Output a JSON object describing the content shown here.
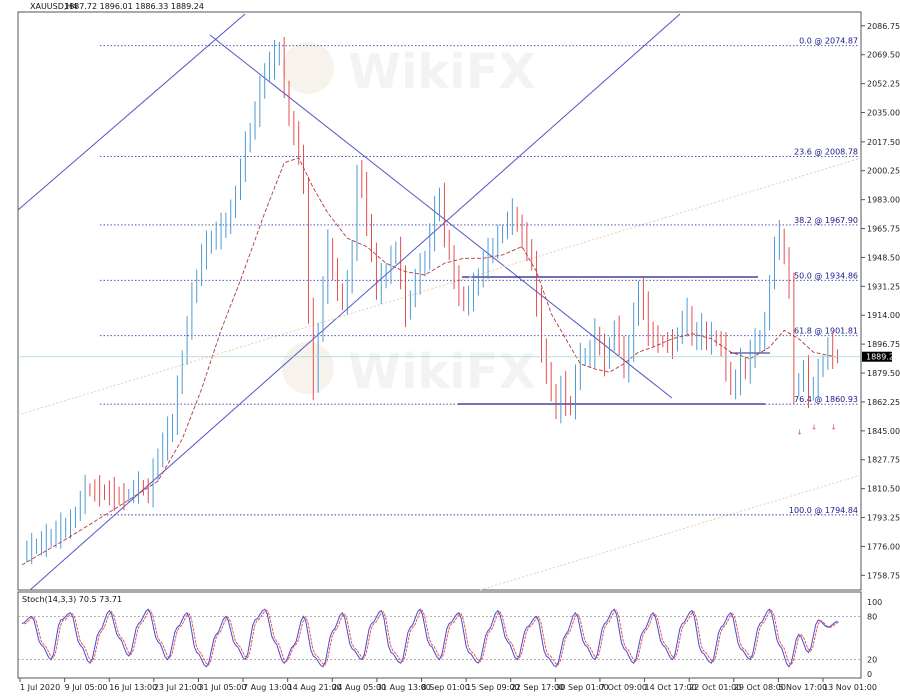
{
  "chart_data": {
    "type": "candlestick",
    "header": {
      "symbol": "XAUUSD,H4",
      "ohlc": "1887.72 1896.01 1886.33 1889.24",
      "oscillator": "Stoch(14,3,3) 70.5 73.71"
    },
    "ylim": [
      1750,
      2095
    ],
    "y_ticks": [
      2086.75,
      2069.5,
      2052.25,
      2035.0,
      2017.5,
      2000.25,
      1983.0,
      1965.75,
      1948.5,
      1931.25,
      1914.0,
      1896.75,
      1879.5,
      1862.25,
      1845.0,
      1827.75,
      1810.5,
      1793.25,
      1776.0,
      1758.75
    ],
    "current_price": "1889.24",
    "x_ticks": [
      "1 Jul 2020",
      "9 Jul 05:00",
      "16 Jul 13:00",
      "23 Jul 21:00",
      "31 Jul 05:00",
      "7 Aug 13:00",
      "14 Aug 21:00",
      "24 Aug 05:00",
      "31 Aug 13:00",
      "8 Sep 01:00",
      "15 Sep 09:00",
      "22 Sep 17:00",
      "30 Sep 01:00",
      "7 Oct 09:00",
      "14 Oct 17:00",
      "22 Oct 01:00",
      "29 Oct 08:00",
      "5 Nov 17:00",
      "13 Nov 01:00"
    ],
    "fib_levels": [
      {
        "label": "0.0 @ 2074.87",
        "value": 2074.87
      },
      {
        "label": "23.6 @ 2008.78",
        "value": 2008.78
      },
      {
        "label": "38.2 @ 1967.90",
        "value": 1967.9
      },
      {
        "label": "50.0 @ 1934.86",
        "value": 1934.86
      },
      {
        "label": "61.8 @ 1901.81",
        "value": 1901.81
      },
      {
        "label": "76.4 @ 1860.93",
        "value": 1860.93
      },
      {
        "label": "100.0 @ 1794.84",
        "value": 1794.84
      }
    ],
    "price_path": [
      [
        0,
        1772
      ],
      [
        5,
        1780
      ],
      [
        10,
        1790
      ],
      [
        13,
        1810
      ],
      [
        17,
        1808
      ],
      [
        21,
        1805
      ],
      [
        24,
        1812
      ],
      [
        26,
        1808
      ],
      [
        28,
        1830
      ],
      [
        31,
        1850
      ],
      [
        33,
        1890
      ],
      [
        35,
        1925
      ],
      [
        37,
        1950
      ],
      [
        39,
        1960
      ],
      [
        41,
        1965
      ],
      [
        43,
        1975
      ],
      [
        46,
        2015
      ],
      [
        48,
        2035
      ],
      [
        50,
        2060
      ],
      [
        52,
        2068
      ],
      [
        53,
        2072
      ],
      [
        55,
        2030
      ],
      [
        57,
        2012
      ],
      [
        58,
        1990
      ],
      [
        59,
        1915
      ],
      [
        60,
        1872
      ],
      [
        61,
        1905
      ],
      [
        63,
        1955
      ],
      [
        64,
        1940
      ],
      [
        66,
        1920
      ],
      [
        68,
        1950
      ],
      [
        69,
        2000
      ],
      [
        70,
        1990
      ],
      [
        71,
        1970
      ],
      [
        73,
        1930
      ],
      [
        75,
        1940
      ],
      [
        77,
        1955
      ],
      [
        79,
        1915
      ],
      [
        81,
        1935
      ],
      [
        83,
        1948
      ],
      [
        85,
        1975
      ],
      [
        86,
        1985
      ],
      [
        87,
        1962
      ],
      [
        88,
        1950
      ],
      [
        89,
        1935
      ],
      [
        91,
        1920
      ],
      [
        93,
        1930
      ],
      [
        95,
        1945
      ],
      [
        97,
        1955
      ],
      [
        99,
        1965
      ],
      [
        101,
        1975
      ],
      [
        103,
        1960
      ],
      [
        104,
        1955
      ],
      [
        105,
        1945
      ],
      [
        106,
        1920
      ],
      [
        107,
        1895
      ],
      [
        108,
        1878
      ],
      [
        109,
        1870
      ],
      [
        110,
        1855
      ],
      [
        111,
        1872
      ],
      [
        112,
        1862
      ],
      [
        113,
        1858
      ],
      [
        114,
        1878
      ],
      [
        115,
        1888
      ],
      [
        117,
        1892
      ],
      [
        118,
        1902
      ],
      [
        119,
        1895
      ],
      [
        120,
        1885
      ],
      [
        121,
        1898
      ],
      [
        122,
        1905
      ],
      [
        123,
        1898
      ],
      [
        124,
        1880
      ],
      [
        125,
        1895
      ],
      [
        126,
        1912
      ],
      [
        127,
        1930
      ],
      [
        128,
        1918
      ],
      [
        129,
        1905
      ],
      [
        130,
        1900
      ],
      [
        132,
        1898
      ],
      [
        134,
        1896
      ],
      [
        136,
        1910
      ],
      [
        137,
        1915
      ],
      [
        138,
        1900
      ],
      [
        140,
        1905
      ],
      [
        141,
        1898
      ],
      [
        142,
        1902
      ],
      [
        144,
        1895
      ],
      [
        146,
        1870
      ],
      [
        147,
        1875
      ],
      [
        148,
        1885
      ],
      [
        149,
        1880
      ],
      [
        150,
        1892
      ],
      [
        152,
        1900
      ],
      [
        153,
        1908
      ],
      [
        154,
        1935
      ],
      [
        155,
        1955
      ],
      [
        156,
        1962
      ],
      [
        157,
        1948
      ],
      [
        158,
        1930
      ],
      [
        159,
        1870
      ],
      [
        160,
        1875
      ],
      [
        161,
        1880
      ],
      [
        162,
        1868
      ],
      [
        163,
        1872
      ],
      [
        164,
        1880
      ],
      [
        165,
        1887
      ],
      [
        166,
        1895
      ],
      [
        167,
        1890
      ],
      [
        168,
        1889
      ]
    ],
    "ma_path": [
      [
        0,
        1765
      ],
      [
        10,
        1782
      ],
      [
        20,
        1800
      ],
      [
        28,
        1815
      ],
      [
        33,
        1840
      ],
      [
        37,
        1870
      ],
      [
        41,
        1905
      ],
      [
        45,
        1935
      ],
      [
        50,
        1975
      ],
      [
        54,
        2005
      ],
      [
        57,
        2008
      ],
      [
        60,
        1990
      ],
      [
        63,
        1975
      ],
      [
        67,
        1960
      ],
      [
        71,
        1955
      ],
      [
        75,
        1945
      ],
      [
        79,
        1940
      ],
      [
        83,
        1938
      ],
      [
        87,
        1945
      ],
      [
        91,
        1948
      ],
      [
        95,
        1948
      ],
      [
        99,
        1950
      ],
      [
        103,
        1955
      ],
      [
        106,
        1940
      ],
      [
        109,
        1915
      ],
      [
        112,
        1900
      ],
      [
        115,
        1885
      ],
      [
        118,
        1882
      ],
      [
        121,
        1880
      ],
      [
        124,
        1885
      ],
      [
        127,
        1892
      ],
      [
        130,
        1895
      ],
      [
        134,
        1900
      ],
      [
        138,
        1903
      ],
      [
        142,
        1900
      ],
      [
        146,
        1892
      ],
      [
        150,
        1888
      ],
      [
        154,
        1895
      ],
      [
        157,
        1905
      ],
      [
        160,
        1900
      ],
      [
        163,
        1892
      ],
      [
        166,
        1890
      ],
      [
        168,
        1889
      ]
    ],
    "stoch_path": [
      [
        0,
        70
      ],
      [
        2,
        80
      ],
      [
        4,
        40
      ],
      [
        6,
        20
      ],
      [
        8,
        75
      ],
      [
        10,
        85
      ],
      [
        12,
        40
      ],
      [
        14,
        15
      ],
      [
        16,
        60
      ],
      [
        18,
        88
      ],
      [
        20,
        50
      ],
      [
        22,
        25
      ],
      [
        24,
        70
      ],
      [
        26,
        90
      ],
      [
        28,
        45
      ],
      [
        30,
        20
      ],
      [
        32,
        65
      ],
      [
        34,
        85
      ],
      [
        36,
        30
      ],
      [
        38,
        10
      ],
      [
        40,
        55
      ],
      [
        42,
        80
      ],
      [
        44,
        40
      ],
      [
        46,
        20
      ],
      [
        48,
        75
      ],
      [
        50,
        90
      ],
      [
        52,
        45
      ],
      [
        54,
        15
      ],
      [
        56,
        40
      ],
      [
        58,
        80
      ],
      [
        60,
        25
      ],
      [
        62,
        10
      ],
      [
        64,
        60
      ],
      [
        66,
        85
      ],
      [
        68,
        35
      ],
      [
        70,
        20
      ],
      [
        72,
        70
      ],
      [
        74,
        88
      ],
      [
        76,
        30
      ],
      [
        78,
        15
      ],
      [
        80,
        65
      ],
      [
        82,
        90
      ],
      [
        84,
        40
      ],
      [
        86,
        20
      ],
      [
        88,
        70
      ],
      [
        90,
        85
      ],
      [
        92,
        30
      ],
      [
        94,
        15
      ],
      [
        96,
        60
      ],
      [
        98,
        88
      ],
      [
        100,
        45
      ],
      [
        102,
        20
      ],
      [
        104,
        65
      ],
      [
        106,
        80
      ],
      [
        108,
        25
      ],
      [
        110,
        10
      ],
      [
        112,
        55
      ],
      [
        114,
        85
      ],
      [
        116,
        40
      ],
      [
        118,
        20
      ],
      [
        120,
        70
      ],
      [
        122,
        90
      ],
      [
        124,
        35
      ],
      [
        126,
        15
      ],
      [
        128,
        60
      ],
      [
        130,
        85
      ],
      [
        132,
        40
      ],
      [
        134,
        20
      ],
      [
        136,
        70
      ],
      [
        138,
        88
      ],
      [
        140,
        30
      ],
      [
        142,
        15
      ],
      [
        144,
        65
      ],
      [
        146,
        85
      ],
      [
        148,
        35
      ],
      [
        150,
        20
      ],
      [
        152,
        70
      ],
      [
        154,
        90
      ],
      [
        156,
        40
      ],
      [
        158,
        10
      ],
      [
        160,
        55
      ],
      [
        162,
        30
      ],
      [
        164,
        75
      ],
      [
        166,
        65
      ],
      [
        168,
        73
      ]
    ],
    "stoch_ylim": [
      0,
      100
    ],
    "stoch_ticks": [
      "100",
      "80",
      "20",
      "0"
    ]
  },
  "watermark": "WikiFX"
}
